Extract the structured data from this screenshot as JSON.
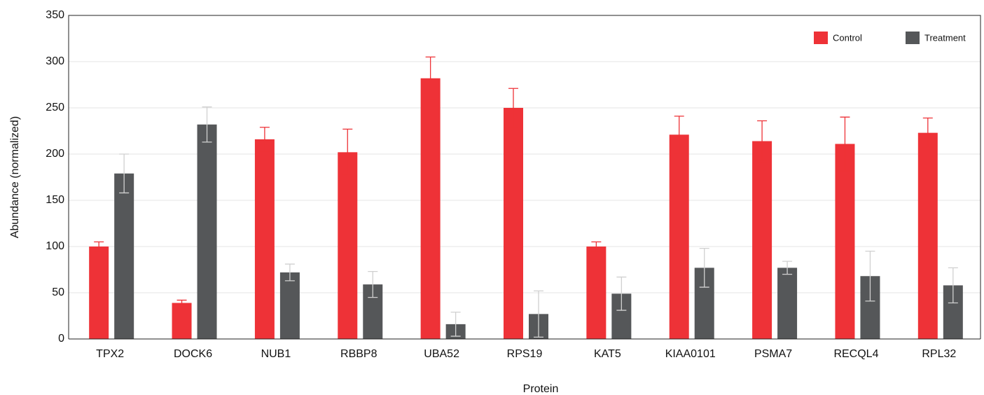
{
  "chart_data": {
    "type": "bar",
    "x_label": "Protein",
    "y_label": "Abundance (normalized)",
    "categories": [
      "TPX2",
      "DOCK6",
      "NUB1",
      "RBBP8",
      "UBA52",
      "RPS19",
      "KAT5",
      "KIAA0101",
      "PSMA7",
      "RECQL4",
      "RPL32"
    ],
    "series": [
      {
        "name": "Control",
        "color": "#ee3237",
        "error_color": "#ee3237",
        "values": [
          100,
          39,
          216,
          202,
          282,
          250,
          100,
          221,
          214,
          211,
          223
        ],
        "errors": [
          5,
          3,
          13,
          25,
          23,
          21,
          5,
          20,
          22,
          29,
          16
        ]
      },
      {
        "name": "Treatment",
        "color": "#555759",
        "error_color": "#d0d0d0",
        "values": [
          179,
          232,
          72,
          59,
          16,
          27,
          49,
          77,
          77,
          68,
          58
        ],
        "errors": [
          21,
          19,
          9,
          14,
          13,
          25,
          18,
          21,
          7,
          27,
          19
        ]
      }
    ],
    "ylim": [
      0,
      350
    ],
    "yticks": [
      0,
      50,
      100,
      150,
      200,
      250,
      300,
      350
    ],
    "grid": true,
    "legend": "top-right"
  }
}
